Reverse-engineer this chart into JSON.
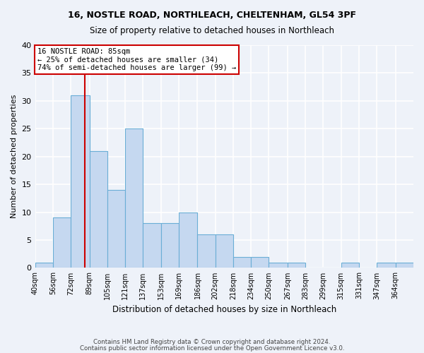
{
  "title1": "16, NOSTLE ROAD, NORTHLEACH, CHELTENHAM, GL54 3PF",
  "title2": "Size of property relative to detached houses in Northleach",
  "xlabel": "Distribution of detached houses by size in Northleach",
  "ylabel": "Number of detached properties",
  "bar_counts": [
    1,
    9,
    31,
    21,
    14,
    25,
    8,
    8,
    10,
    6,
    6,
    2,
    2,
    1,
    1,
    0,
    0,
    1,
    0,
    1,
    1
  ],
  "bin_labels": [
    "40sqm",
    "56sqm",
    "72sqm",
    "89sqm",
    "105sqm",
    "121sqm",
    "137sqm",
    "153sqm",
    "169sqm",
    "186sqm",
    "202sqm",
    "218sqm",
    "234sqm",
    "250sqm",
    "267sqm",
    "283sqm",
    "299sqm",
    "315sqm",
    "331sqm",
    "347sqm",
    "364sqm"
  ],
  "bin_edges": [
    40,
    56,
    72,
    89,
    105,
    121,
    137,
    153,
    169,
    186,
    202,
    218,
    234,
    250,
    267,
    283,
    299,
    315,
    331,
    347,
    364,
    380
  ],
  "bar_color": "#c5d8f0",
  "bar_edge_color": "#6aaed6",
  "property_size": 85,
  "property_line_color": "#cc0000",
  "annotation_line1": "16 NOSTLE ROAD: 85sqm",
  "annotation_line2": "← 25% of detached houses are smaller (34)",
  "annotation_line3": "74% of semi-detached houses are larger (99) →",
  "annotation_box_color": "#ffffff",
  "annotation_box_edge_color": "#cc0000",
  "ylim": [
    0,
    40
  ],
  "yticks": [
    0,
    5,
    10,
    15,
    20,
    25,
    30,
    35,
    40
  ],
  "background_color": "#eef2f9",
  "grid_color": "#ffffff",
  "footer1": "Contains HM Land Registry data © Crown copyright and database right 2024.",
  "footer2": "Contains public sector information licensed under the Open Government Licence v3.0."
}
